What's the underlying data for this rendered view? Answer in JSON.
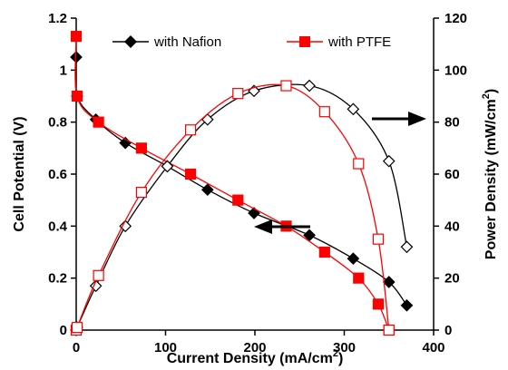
{
  "chart_data": {
    "type": "line",
    "xlabel": "Current Density (mA/cm",
    "xlabel_sup": "2",
    "xlabel_end": ")",
    "ylabel": "Cell Potential (V)",
    "y2label": "Power Density (mW/cm",
    "y2label_sup": "2",
    "y2label_end": ")",
    "xlim": [
      0,
      400
    ],
    "ylim": [
      0,
      1.2
    ],
    "y2lim": [
      0,
      120
    ],
    "xticks": [
      "0",
      "100",
      "200",
      "300",
      "400"
    ],
    "yticks": [
      "0",
      "0.2",
      "0.4",
      "0.6",
      "0.8",
      "1",
      "1.2"
    ],
    "y2ticks": [
      "0",
      "20",
      "40",
      "60",
      "80",
      "100",
      "120"
    ],
    "grid": false,
    "legend_position": "top",
    "colors": {
      "nafion": "#000000",
      "ptfe": "#ff0000"
    },
    "series": [
      {
        "name": "with Nafion",
        "axis": "left",
        "marker": "filled-diamond",
        "color": "#000000",
        "x": [
          0,
          1,
          22,
          55,
          102,
          147,
          199,
          261,
          310,
          350,
          370
        ],
        "y": [
          1.05,
          0.9,
          0.81,
          0.72,
          0.63,
          0.54,
          0.45,
          0.365,
          0.275,
          0.185,
          0.095
        ]
      },
      {
        "name": "with PTFE",
        "axis": "left",
        "marker": "filled-square",
        "color": "#ff0000",
        "x": [
          0,
          1,
          25,
          73,
          128,
          181,
          235,
          278,
          316,
          338,
          350
        ],
        "y": [
          1.13,
          0.9,
          0.8,
          0.7,
          0.6,
          0.5,
          0.4,
          0.3,
          0.2,
          0.1,
          0
        ]
      },
      {
        "name": "",
        "axis": "right",
        "marker": "open-diamond",
        "color": "#000000",
        "x": [
          0,
          1,
          22,
          55,
          102,
          147,
          199,
          261,
          310,
          350,
          370
        ],
        "y": [
          0,
          1,
          17,
          40,
          63,
          81,
          92,
          94,
          85,
          65,
          32
        ]
      },
      {
        "name": "",
        "axis": "right",
        "marker": "open-square",
        "color": "#ff0000",
        "x": [
          0,
          1,
          25,
          73,
          128,
          181,
          235,
          278,
          316,
          338,
          350
        ],
        "y": [
          0,
          1,
          21,
          53,
          77,
          91,
          94,
          84,
          64,
          35,
          0
        ]
      }
    ],
    "annotations": [
      {
        "kind": "arrow",
        "points_to": "left-axis",
        "at": [
          300,
          0.38
        ]
      },
      {
        "kind": "arrow",
        "points_to": "right-axis",
        "at": [
          330,
          74
        ]
      }
    ]
  }
}
